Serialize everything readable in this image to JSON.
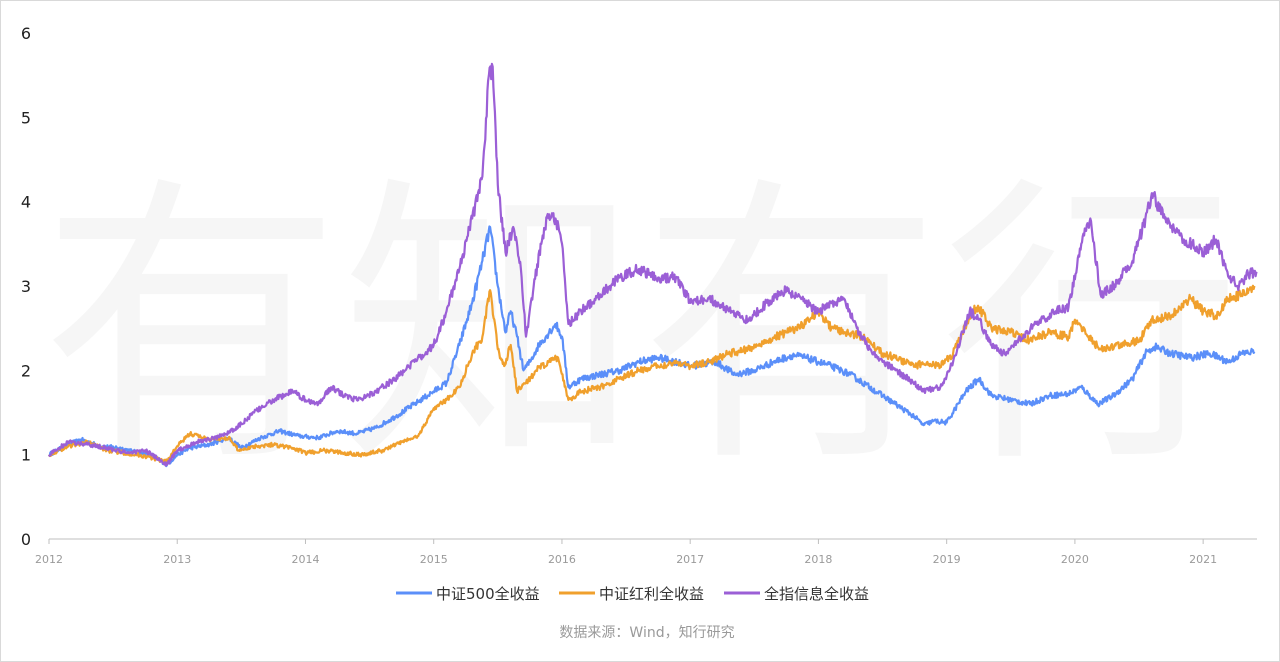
{
  "chart_data": {
    "type": "line",
    "watermark": "有知有行",
    "source": "数据来源：Wind，知行研究",
    "ylim": [
      0,
      6
    ],
    "yticks": [
      "0",
      "1",
      "2",
      "3",
      "4",
      "5",
      "6"
    ],
    "xlim": [
      2012.0,
      2021.42
    ],
    "xticks": [
      "2012",
      "2013",
      "2014",
      "2015",
      "2016",
      "2017",
      "2018",
      "2019",
      "2020",
      "2021"
    ],
    "legend_position": "bottom",
    "series": [
      {
        "name": "中证500全收益",
        "color": "#5b8ff9",
        "points": [
          [
            2012.0,
            1.0
          ],
          [
            2012.15,
            1.12
          ],
          [
            2012.25,
            1.18
          ],
          [
            2012.4,
            1.1
          ],
          [
            2012.55,
            1.08
          ],
          [
            2012.7,
            1.02
          ],
          [
            2012.8,
            1.0
          ],
          [
            2012.92,
            0.88
          ],
          [
            2013.0,
            1.0
          ],
          [
            2013.1,
            1.08
          ],
          [
            2013.25,
            1.12
          ],
          [
            2013.4,
            1.2
          ],
          [
            2013.5,
            1.08
          ],
          [
            2013.65,
            1.2
          ],
          [
            2013.8,
            1.28
          ],
          [
            2013.95,
            1.22
          ],
          [
            2014.1,
            1.2
          ],
          [
            2014.25,
            1.28
          ],
          [
            2014.4,
            1.25
          ],
          [
            2014.55,
            1.32
          ],
          [
            2014.7,
            1.45
          ],
          [
            2014.85,
            1.6
          ],
          [
            2015.0,
            1.75
          ],
          [
            2015.1,
            1.85
          ],
          [
            2015.2,
            2.3
          ],
          [
            2015.3,
            2.8
          ],
          [
            2015.38,
            3.3
          ],
          [
            2015.44,
            3.7
          ],
          [
            2015.5,
            3.0
          ],
          [
            2015.56,
            2.45
          ],
          [
            2015.6,
            2.7
          ],
          [
            2015.65,
            2.4
          ],
          [
            2015.7,
            2.0
          ],
          [
            2015.75,
            2.1
          ],
          [
            2015.82,
            2.3
          ],
          [
            2015.9,
            2.45
          ],
          [
            2015.95,
            2.55
          ],
          [
            2016.0,
            2.4
          ],
          [
            2016.05,
            1.8
          ],
          [
            2016.15,
            1.9
          ],
          [
            2016.3,
            1.95
          ],
          [
            2016.45,
            2.0
          ],
          [
            2016.6,
            2.1
          ],
          [
            2016.75,
            2.15
          ],
          [
            2016.9,
            2.1
          ],
          [
            2017.0,
            2.05
          ],
          [
            2017.2,
            2.1
          ],
          [
            2017.35,
            1.95
          ],
          [
            2017.5,
            2.0
          ],
          [
            2017.65,
            2.1
          ],
          [
            2017.8,
            2.18
          ],
          [
            2017.9,
            2.15
          ],
          [
            2018.0,
            2.1
          ],
          [
            2018.1,
            2.05
          ],
          [
            2018.25,
            1.95
          ],
          [
            2018.4,
            1.8
          ],
          [
            2018.5,
            1.7
          ],
          [
            2018.6,
            1.6
          ],
          [
            2018.75,
            1.45
          ],
          [
            2018.82,
            1.35
          ],
          [
            2018.9,
            1.4
          ],
          [
            2019.0,
            1.38
          ],
          [
            2019.15,
            1.75
          ],
          [
            2019.25,
            1.9
          ],
          [
            2019.35,
            1.7
          ],
          [
            2019.5,
            1.65
          ],
          [
            2019.65,
            1.6
          ],
          [
            2019.8,
            1.7
          ],
          [
            2019.95,
            1.72
          ],
          [
            2020.05,
            1.8
          ],
          [
            2020.18,
            1.6
          ],
          [
            2020.3,
            1.7
          ],
          [
            2020.45,
            1.9
          ],
          [
            2020.55,
            2.2
          ],
          [
            2020.62,
            2.28
          ],
          [
            2020.75,
            2.2
          ],
          [
            2020.9,
            2.15
          ],
          [
            2021.05,
            2.2
          ],
          [
            2021.2,
            2.1
          ],
          [
            2021.3,
            2.2
          ],
          [
            2021.4,
            2.22
          ]
        ]
      },
      {
        "name": "中证红利全收益",
        "color": "#f0a02d",
        "points": [
          [
            2012.0,
            1.0
          ],
          [
            2012.15,
            1.1
          ],
          [
            2012.3,
            1.15
          ],
          [
            2012.45,
            1.05
          ],
          [
            2012.6,
            1.02
          ],
          [
            2012.75,
            0.98
          ],
          [
            2012.92,
            0.92
          ],
          [
            2013.0,
            1.1
          ],
          [
            2013.1,
            1.25
          ],
          [
            2013.25,
            1.18
          ],
          [
            2013.4,
            1.2
          ],
          [
            2013.48,
            1.05
          ],
          [
            2013.6,
            1.1
          ],
          [
            2013.75,
            1.12
          ],
          [
            2013.9,
            1.08
          ],
          [
            2014.0,
            1.02
          ],
          [
            2014.15,
            1.05
          ],
          [
            2014.3,
            1.02
          ],
          [
            2014.45,
            1.0
          ],
          [
            2014.6,
            1.05
          ],
          [
            2014.75,
            1.15
          ],
          [
            2014.88,
            1.22
          ],
          [
            2015.0,
            1.55
          ],
          [
            2015.1,
            1.65
          ],
          [
            2015.2,
            1.8
          ],
          [
            2015.3,
            2.2
          ],
          [
            2015.38,
            2.4
          ],
          [
            2015.44,
            2.95
          ],
          [
            2015.5,
            2.25
          ],
          [
            2015.55,
            2.05
          ],
          [
            2015.6,
            2.3
          ],
          [
            2015.65,
            1.75
          ],
          [
            2015.72,
            1.85
          ],
          [
            2015.8,
            2.0
          ],
          [
            2015.9,
            2.1
          ],
          [
            2015.97,
            2.15
          ],
          [
            2016.05,
            1.65
          ],
          [
            2016.15,
            1.75
          ],
          [
            2016.3,
            1.8
          ],
          [
            2016.45,
            1.9
          ],
          [
            2016.6,
            2.0
          ],
          [
            2016.75,
            2.05
          ],
          [
            2016.9,
            2.1
          ],
          [
            2017.0,
            2.05
          ],
          [
            2017.15,
            2.1
          ],
          [
            2017.3,
            2.2
          ],
          [
            2017.45,
            2.25
          ],
          [
            2017.6,
            2.35
          ],
          [
            2017.75,
            2.45
          ],
          [
            2017.9,
            2.55
          ],
          [
            2018.0,
            2.7
          ],
          [
            2018.1,
            2.5
          ],
          [
            2018.2,
            2.45
          ],
          [
            2018.35,
            2.4
          ],
          [
            2018.5,
            2.2
          ],
          [
            2018.6,
            2.15
          ],
          [
            2018.75,
            2.05
          ],
          [
            2018.85,
            2.1
          ],
          [
            2018.95,
            2.05
          ],
          [
            2019.05,
            2.2
          ],
          [
            2019.2,
            2.7
          ],
          [
            2019.25,
            2.75
          ],
          [
            2019.35,
            2.5
          ],
          [
            2019.5,
            2.45
          ],
          [
            2019.65,
            2.35
          ],
          [
            2019.8,
            2.45
          ],
          [
            2019.95,
            2.4
          ],
          [
            2020.0,
            2.6
          ],
          [
            2020.1,
            2.4
          ],
          [
            2020.2,
            2.25
          ],
          [
            2020.35,
            2.3
          ],
          [
            2020.5,
            2.35
          ],
          [
            2020.6,
            2.6
          ],
          [
            2020.75,
            2.65
          ],
          [
            2020.9,
            2.85
          ],
          [
            2021.0,
            2.7
          ],
          [
            2021.1,
            2.65
          ],
          [
            2021.2,
            2.85
          ],
          [
            2021.3,
            2.9
          ],
          [
            2021.4,
            3.0
          ]
        ]
      },
      {
        "name": "全指信息全收益",
        "color": "#9b5fd6",
        "points": [
          [
            2012.0,
            1.0
          ],
          [
            2012.15,
            1.15
          ],
          [
            2012.3,
            1.12
          ],
          [
            2012.45,
            1.08
          ],
          [
            2012.6,
            1.02
          ],
          [
            2012.75,
            1.05
          ],
          [
            2012.92,
            0.88
          ],
          [
            2013.0,
            1.05
          ],
          [
            2013.15,
            1.15
          ],
          [
            2013.3,
            1.2
          ],
          [
            2013.45,
            1.3
          ],
          [
            2013.6,
            1.5
          ],
          [
            2013.75,
            1.65
          ],
          [
            2013.9,
            1.75
          ],
          [
            2014.0,
            1.65
          ],
          [
            2014.1,
            1.6
          ],
          [
            2014.2,
            1.8
          ],
          [
            2014.3,
            1.7
          ],
          [
            2014.4,
            1.65
          ],
          [
            2014.55,
            1.75
          ],
          [
            2014.7,
            1.9
          ],
          [
            2014.85,
            2.1
          ],
          [
            2015.0,
            2.3
          ],
          [
            2015.1,
            2.7
          ],
          [
            2015.2,
            3.2
          ],
          [
            2015.3,
            3.8
          ],
          [
            2015.38,
            4.3
          ],
          [
            2015.43,
            5.5
          ],
          [
            2015.46,
            5.6
          ],
          [
            2015.5,
            4.2
          ],
          [
            2015.56,
            3.4
          ],
          [
            2015.62,
            3.7
          ],
          [
            2015.68,
            3.2
          ],
          [
            2015.72,
            2.4
          ],
          [
            2015.78,
            3.0
          ],
          [
            2015.85,
            3.6
          ],
          [
            2015.9,
            3.85
          ],
          [
            2015.95,
            3.8
          ],
          [
            2016.0,
            3.5
          ],
          [
            2016.05,
            2.55
          ],
          [
            2016.15,
            2.7
          ],
          [
            2016.3,
            2.9
          ],
          [
            2016.45,
            3.1
          ],
          [
            2016.6,
            3.2
          ],
          [
            2016.75,
            3.1
          ],
          [
            2016.9,
            3.1
          ],
          [
            2017.0,
            2.8
          ],
          [
            2017.15,
            2.85
          ],
          [
            2017.3,
            2.7
          ],
          [
            2017.45,
            2.6
          ],
          [
            2017.6,
            2.8
          ],
          [
            2017.75,
            2.95
          ],
          [
            2017.9,
            2.8
          ],
          [
            2018.0,
            2.7
          ],
          [
            2018.1,
            2.8
          ],
          [
            2018.2,
            2.85
          ],
          [
            2018.3,
            2.5
          ],
          [
            2018.4,
            2.25
          ],
          [
            2018.5,
            2.1
          ],
          [
            2018.6,
            2.0
          ],
          [
            2018.75,
            1.85
          ],
          [
            2018.82,
            1.75
          ],
          [
            2018.95,
            1.8
          ],
          [
            2019.05,
            2.1
          ],
          [
            2019.18,
            2.7
          ],
          [
            2019.25,
            2.6
          ],
          [
            2019.35,
            2.3
          ],
          [
            2019.45,
            2.2
          ],
          [
            2019.55,
            2.35
          ],
          [
            2019.7,
            2.55
          ],
          [
            2019.85,
            2.7
          ],
          [
            2019.95,
            2.75
          ],
          [
            2020.05,
            3.5
          ],
          [
            2020.12,
            3.8
          ],
          [
            2020.2,
            2.9
          ],
          [
            2020.3,
            3.0
          ],
          [
            2020.45,
            3.3
          ],
          [
            2020.55,
            3.8
          ],
          [
            2020.6,
            4.1
          ],
          [
            2020.7,
            3.8
          ],
          [
            2020.85,
            3.55
          ],
          [
            2021.0,
            3.4
          ],
          [
            2021.1,
            3.55
          ],
          [
            2021.2,
            3.1
          ],
          [
            2021.28,
            3.0
          ],
          [
            2021.35,
            3.15
          ],
          [
            2021.42,
            3.15
          ]
        ]
      }
    ]
  }
}
